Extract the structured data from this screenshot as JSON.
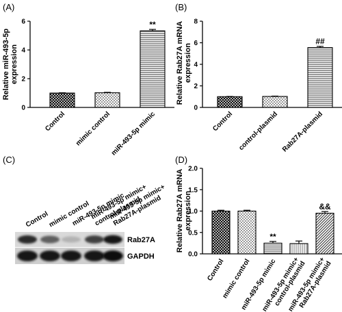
{
  "chart_data": [
    {
      "panel": "(A)",
      "type": "bar",
      "ylabel": "Relative miR-493-5p\nexpression",
      "categories": [
        "Control",
        "mimic control",
        "miR-493-5p mimic"
      ],
      "values": [
        1.0,
        1.02,
        5.33
      ],
      "errors": [
        0.02,
        0.03,
        0.1
      ],
      "significance": [
        "",
        "",
        "**"
      ],
      "yticks": [
        0,
        2,
        4,
        6
      ],
      "ylim": [
        0,
        6
      ],
      "patterns": [
        "crosshatch",
        "check",
        "hlines"
      ]
    },
    {
      "panel": "(B)",
      "type": "bar",
      "ylabel": "Relative Rab27A mRNA\nexpression",
      "categories": [
        "Control",
        "control-plasmid",
        "Rab27A-plasmid"
      ],
      "values": [
        1.0,
        1.02,
        5.55
      ],
      "errors": [
        0.02,
        0.03,
        0.12
      ],
      "significance": [
        "",
        "",
        "##"
      ],
      "yticks": [
        0,
        2,
        4,
        6,
        8
      ],
      "ylim": [
        0,
        8
      ],
      "patterns": [
        "crosshatch",
        "check",
        "hlines"
      ]
    },
    {
      "panel": "(D)",
      "type": "bar",
      "ylabel": "Relative Rab27A mRNA\nexpression",
      "categories": [
        "Control",
        "mimic control",
        "miR-493-5p mimic",
        "miR-493-5p mimic+\ncontrol-plasmid",
        "miR-493-5p mimic+\nRab27A-plasmid"
      ],
      "values": [
        1.0,
        1.0,
        0.25,
        0.24,
        0.95
      ],
      "errors": [
        0.02,
        0.02,
        0.04,
        0.06,
        0.04
      ],
      "significance": [
        "",
        "",
        "**",
        "",
        "&&"
      ],
      "yticks": [
        0.0,
        0.5,
        1.0,
        1.5,
        2.0
      ],
      "ylim": [
        0,
        2.0
      ],
      "patterns": [
        "crosshatch",
        "check",
        "hlines",
        "vlines",
        "diag"
      ]
    }
  ],
  "blot": {
    "panel": "(C)",
    "lanes": [
      "Control",
      "mimic control",
      "miR-493-5p mimic",
      "miR-493-5p mimic+\ncontrol-plasmid",
      "miR-493-5p mimic+\nRab27A-plasmid"
    ],
    "proteins": [
      "Rab27A",
      "GAPDH"
    ],
    "rab27a_intensity": [
      0.85,
      0.6,
      0.2,
      0.75,
      0.95
    ],
    "gapdh_intensity": [
      0.95,
      0.95,
      0.95,
      0.95,
      1.0
    ]
  }
}
